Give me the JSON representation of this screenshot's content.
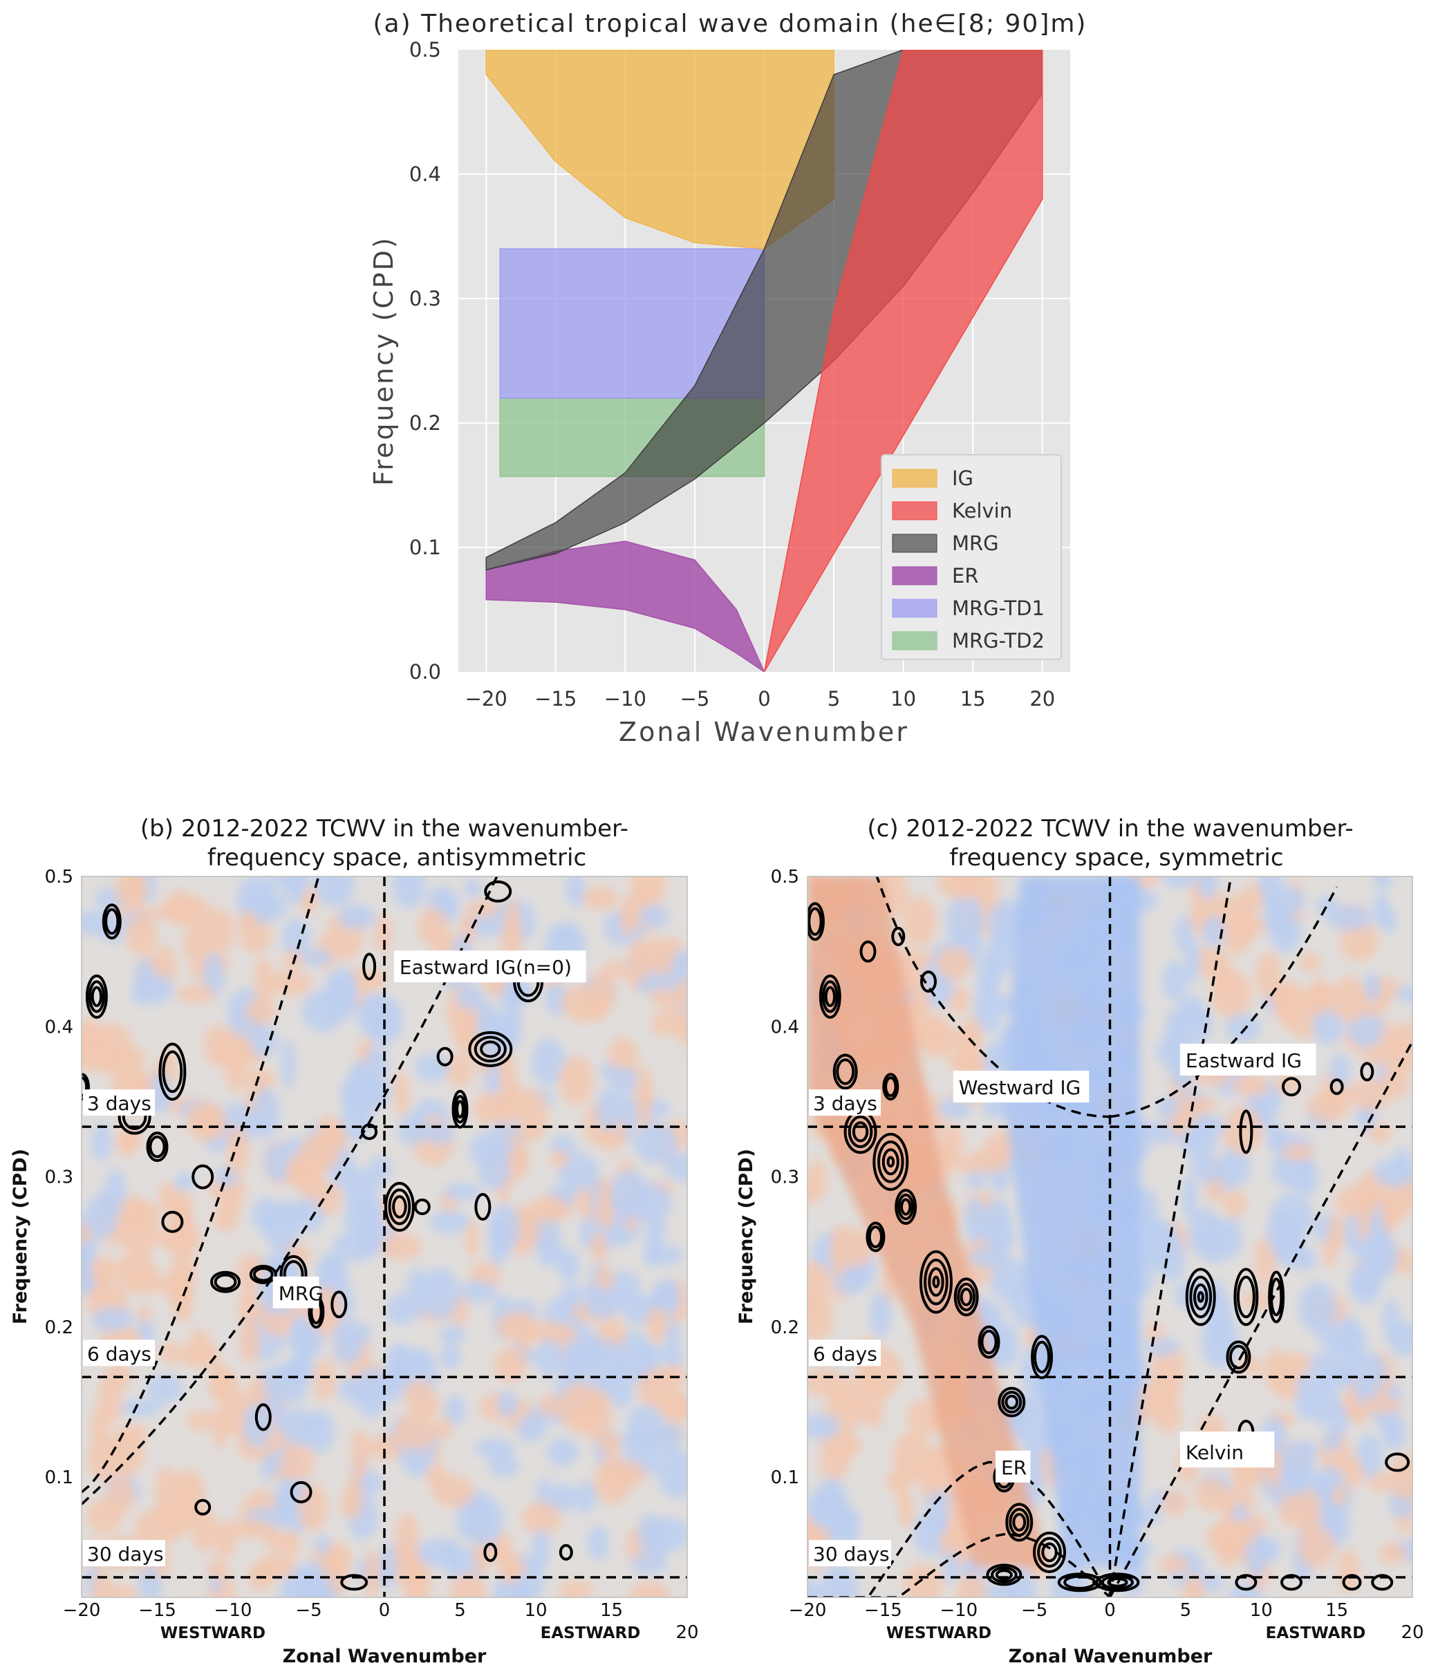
{
  "panel_a": {
    "title": "(a) Theoretical tropical wave domain (he∈[8; 90]m)",
    "xlabel": "Zonal Wavenumber",
    "ylabel": "Frequency (CPD)",
    "xticks": [
      "−20",
      "−15",
      "−10",
      "−5",
      "0",
      "5",
      "10",
      "15",
      "20"
    ],
    "yticks": [
      "0.0",
      "0.1",
      "0.2",
      "0.3",
      "0.4",
      "0.5"
    ],
    "legend": [
      "IG",
      "Kelvin",
      "MRG",
      "ER",
      "MRG-TD1",
      "MRG-TD2"
    ]
  },
  "panel_b": {
    "title_line1": "(b) 2012-2022 TCWV in the wavenumber-",
    "title_line2": "frequency space, antisymmetric",
    "xlabel": "Zonal Wavenumber",
    "ylabel": "Frequency (CPD)",
    "west": "WESTWARD",
    "east": "EASTWARD",
    "xticks": [
      "−20",
      "−15",
      "−10",
      "−5",
      "0",
      "5",
      "10",
      "15"
    ],
    "xtick_end": "20",
    "yticks": [
      "0.1",
      "0.2",
      "0.3",
      "0.4",
      "0.5"
    ],
    "period_labels": [
      "3 days",
      "6 days",
      "30 days"
    ],
    "annotations": [
      "Eastward IG(n=0)",
      "MRG"
    ]
  },
  "panel_c": {
    "title_line1": "(c) 2012-2022 TCWV in the wavenumber-",
    "title_line2": "frequency space, symmetric",
    "xlabel": "Zonal Wavenumber",
    "ylabel": "Frequency (CPD)",
    "west": "WESTWARD",
    "east": "EASTWARD",
    "xticks": [
      "−20",
      "−15",
      "−10",
      "−5",
      "0",
      "5",
      "10",
      "15"
    ],
    "xtick_end": "20",
    "yticks": [
      "0.1",
      "0.2",
      "0.3",
      "0.4",
      "0.5"
    ],
    "period_labels": [
      "3 days",
      "6 days",
      "30 days"
    ],
    "annotations": [
      "Westward IG",
      "Eastward IG",
      "ER",
      "Kelvin"
    ]
  },
  "colors": {
    "IG": "#f0b447",
    "Kelvin": "#f24a4a",
    "MRG": "#3d3d3d",
    "ER": "#a552ab",
    "MRG-TD1": "#9c9cf0",
    "MRG-TD2": "#8fc48f",
    "background": "#e5e5e5",
    "positive": "#f2c8b0",
    "negative": "#bccff0"
  },
  "chart_data": [
    {
      "panel": "a",
      "type": "area",
      "title": "(a) Theoretical tropical wave domain (he∈[8; 90]m)",
      "xlabel": "Zonal Wavenumber",
      "ylabel": "Frequency (CPD)",
      "xlim": [
        -22,
        22
      ],
      "ylim": [
        0,
        0.5
      ],
      "grid": true,
      "legend_position": "lower-right",
      "series": [
        {
          "name": "IG",
          "x": [
            -20,
            -15,
            -10,
            -5,
            0,
            5
          ],
          "y_low": [
            0.48,
            0.41,
            0.365,
            0.345,
            0.34,
            0.38
          ],
          "y_high": [
            0.5,
            0.5,
            0.5,
            0.5,
            0.5,
            0.5
          ]
        },
        {
          "name": "Kelvin",
          "x": [
            0,
            5,
            10,
            15,
            20
          ],
          "y_low": [
            0,
            0.095,
            0.19,
            0.285,
            0.38
          ],
          "y_high": [
            0,
            0.29,
            0.5,
            0.5,
            0.5
          ]
        },
        {
          "name": "MRG",
          "x": [
            -20,
            -15,
            -10,
            -5,
            0,
            5,
            10,
            15,
            20
          ],
          "y_low": [
            0.082,
            0.095,
            0.12,
            0.155,
            0.2,
            0.25,
            0.31,
            0.385,
            0.465
          ],
          "y_high": [
            0.092,
            0.12,
            0.16,
            0.23,
            0.34,
            0.48,
            0.5,
            0.5,
            0.5
          ]
        },
        {
          "name": "ER",
          "x": [
            -20,
            -15,
            -10,
            -5,
            -2,
            0
          ],
          "y_low": [
            0.058,
            0.056,
            0.05,
            0.035,
            0.015,
            0
          ],
          "y_high": [
            0.082,
            0.097,
            0.105,
            0.09,
            0.05,
            0
          ]
        },
        {
          "name": "MRG-TD1",
          "x": [
            -19,
            0
          ],
          "y_low": [
            0.22,
            0.22
          ],
          "y_high": [
            0.34,
            0.34
          ]
        },
        {
          "name": "MRG-TD2",
          "x": [
            -19,
            0
          ],
          "y_low": [
            0.157,
            0.157
          ],
          "y_high": [
            0.22,
            0.22
          ]
        }
      ]
    },
    {
      "panel": "b",
      "type": "heatmap",
      "title": "(b) 2012-2022 TCWV in the wavenumber-frequency space, antisymmetric",
      "xlabel": "Zonal Wavenumber",
      "ylabel": "Frequency (CPD)",
      "xlim": [
        -20,
        20
      ],
      "ylim": [
        0.02,
        0.5
      ],
      "periods_days": [
        3,
        6,
        30
      ],
      "dispersion_curves": [
        "Eastward IG(n=0)",
        "MRG"
      ]
    },
    {
      "panel": "c",
      "type": "heatmap",
      "title": "(c) 2012-2022 TCWV in the wavenumber-frequency space, symmetric",
      "xlabel": "Zonal Wavenumber",
      "ylabel": "Frequency (CPD)",
      "xlim": [
        -20,
        20
      ],
      "ylim": [
        0.02,
        0.5
      ],
      "periods_days": [
        3,
        6,
        30
      ],
      "dispersion_curves": [
        "Westward IG",
        "Eastward IG",
        "ER",
        "Kelvin"
      ]
    }
  ]
}
